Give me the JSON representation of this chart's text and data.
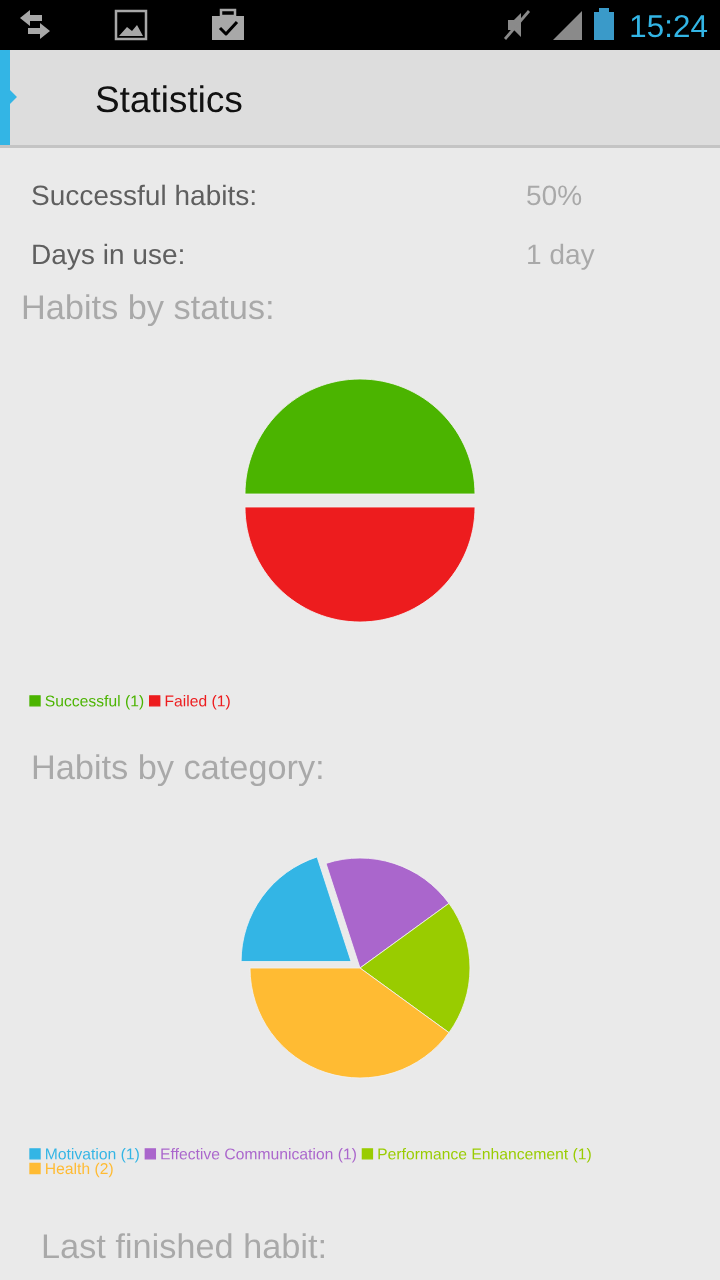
{
  "chart_data": [
    {
      "type": "other",
      "title": "Statistics",
      "annotations": [
        "15:24",
        "Successful habits:",
        "50%",
        "Days in use:",
        "1 day"
      ]
    },
    {
      "type": "pie",
      "title": "Habits by status:",
      "categories": [
        "Successful (1)",
        "Failed (1)"
      ],
      "values": [
        1,
        1
      ],
      "colors": [
        "#4bb400",
        "#ed1c1e"
      ],
      "legend": "bottom left"
    },
    {
      "type": "pie",
      "title": "Habits by category:",
      "categories": [
        "Motivation (1)",
        "Effective Communication (1)",
        "Performance Enhancement (1)",
        "Health (2)"
      ],
      "values": [
        1,
        1,
        1,
        2
      ],
      "colors": [
        "#33b5e5",
        "#aa66cc",
        "#99cc00",
        "#ffbb33"
      ],
      "legend": "bottom left"
    },
    {
      "type": "other",
      "title": "Last finished habit:"
    }
  ]
}
